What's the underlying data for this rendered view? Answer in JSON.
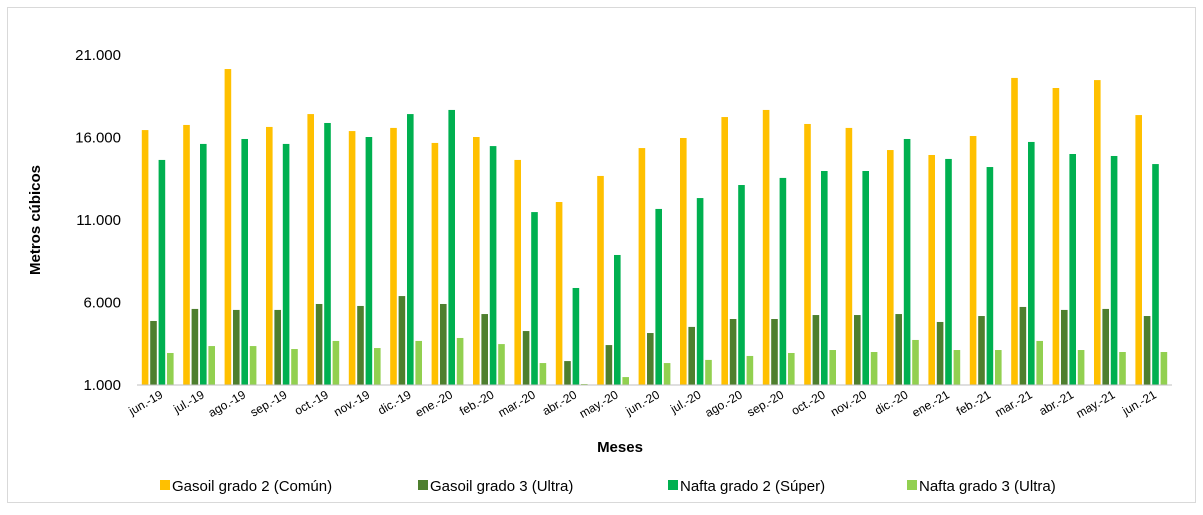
{
  "chart_data": {
    "type": "bar",
    "x_label": "Meses",
    "y_label": "Metros cúbicos",
    "categories": [
      "jun.-19",
      "jul.-19",
      "ago.-19",
      "sep.-19",
      "oct.-19",
      "nov.-19",
      "dic.-19",
      "ene.-20",
      "feb.-20",
      "mar.-20",
      "abr.-20",
      "may.-20",
      "jun.-20",
      "jul.-20",
      "ago.-20",
      "sep.-20",
      "oct.-20",
      "nov.-20",
      "dic.-20",
      "ene.-21",
      "feb.-21",
      "mar.-21",
      "abr.-21",
      "may.-21",
      "jun.-21"
    ],
    "series": [
      {
        "name": "Gasoil grado 2 (Común)",
        "color": "#ffc000",
        "values": [
          16450,
          16760,
          20150,
          16640,
          17420,
          16390,
          16580,
          15670,
          16030,
          14640,
          12090,
          13670,
          15360,
          15970,
          17240,
          17670,
          16820,
          16580,
          15240,
          14940,
          16090,
          19610,
          19000,
          19480,
          17360
        ]
      },
      {
        "name": "Gasoil grado 3 (Ultra)",
        "color": "#4e7f2e",
        "values": [
          4880,
          5610,
          5550,
          5550,
          5910,
          5790,
          6390,
          5910,
          5300,
          4270,
          2450,
          3420,
          4150,
          4520,
          5000,
          5000,
          5240,
          5240,
          5300,
          4820,
          5180,
          5730,
          5550,
          5610,
          5180
        ]
      },
      {
        "name": "Nafta grado 2 (Súper)",
        "color": "#00b050",
        "values": [
          14640,
          15610,
          15910,
          15610,
          16880,
          16030,
          17420,
          17670,
          15480,
          11480,
          6880,
          8880,
          11670,
          12330,
          13120,
          13550,
          13970,
          13970,
          15910,
          14700,
          14210,
          15730,
          15000,
          14880,
          14390
        ]
      },
      {
        "name": "Nafta grado 3 (Ultra)",
        "color": "#92d050",
        "values": [
          2940,
          3360,
          3360,
          3180,
          3670,
          3240,
          3670,
          3850,
          3480,
          2330,
          1060,
          1480,
          2330,
          2520,
          2760,
          2940,
          3120,
          3000,
          3730,
          3120,
          3120,
          3670,
          3120,
          3000,
          3000
        ]
      }
    ],
    "ylim": [
      1000,
      21000
    ],
    "yticks": [
      {
        "value": 1000,
        "label": "1.000"
      },
      {
        "value": 6000,
        "label": "6.000"
      },
      {
        "value": 11000,
        "label": "11.000"
      },
      {
        "value": 16000,
        "label": "16.000"
      },
      {
        "value": 21000,
        "label": "21.000"
      }
    ],
    "grid": false,
    "legend": "bottom"
  }
}
